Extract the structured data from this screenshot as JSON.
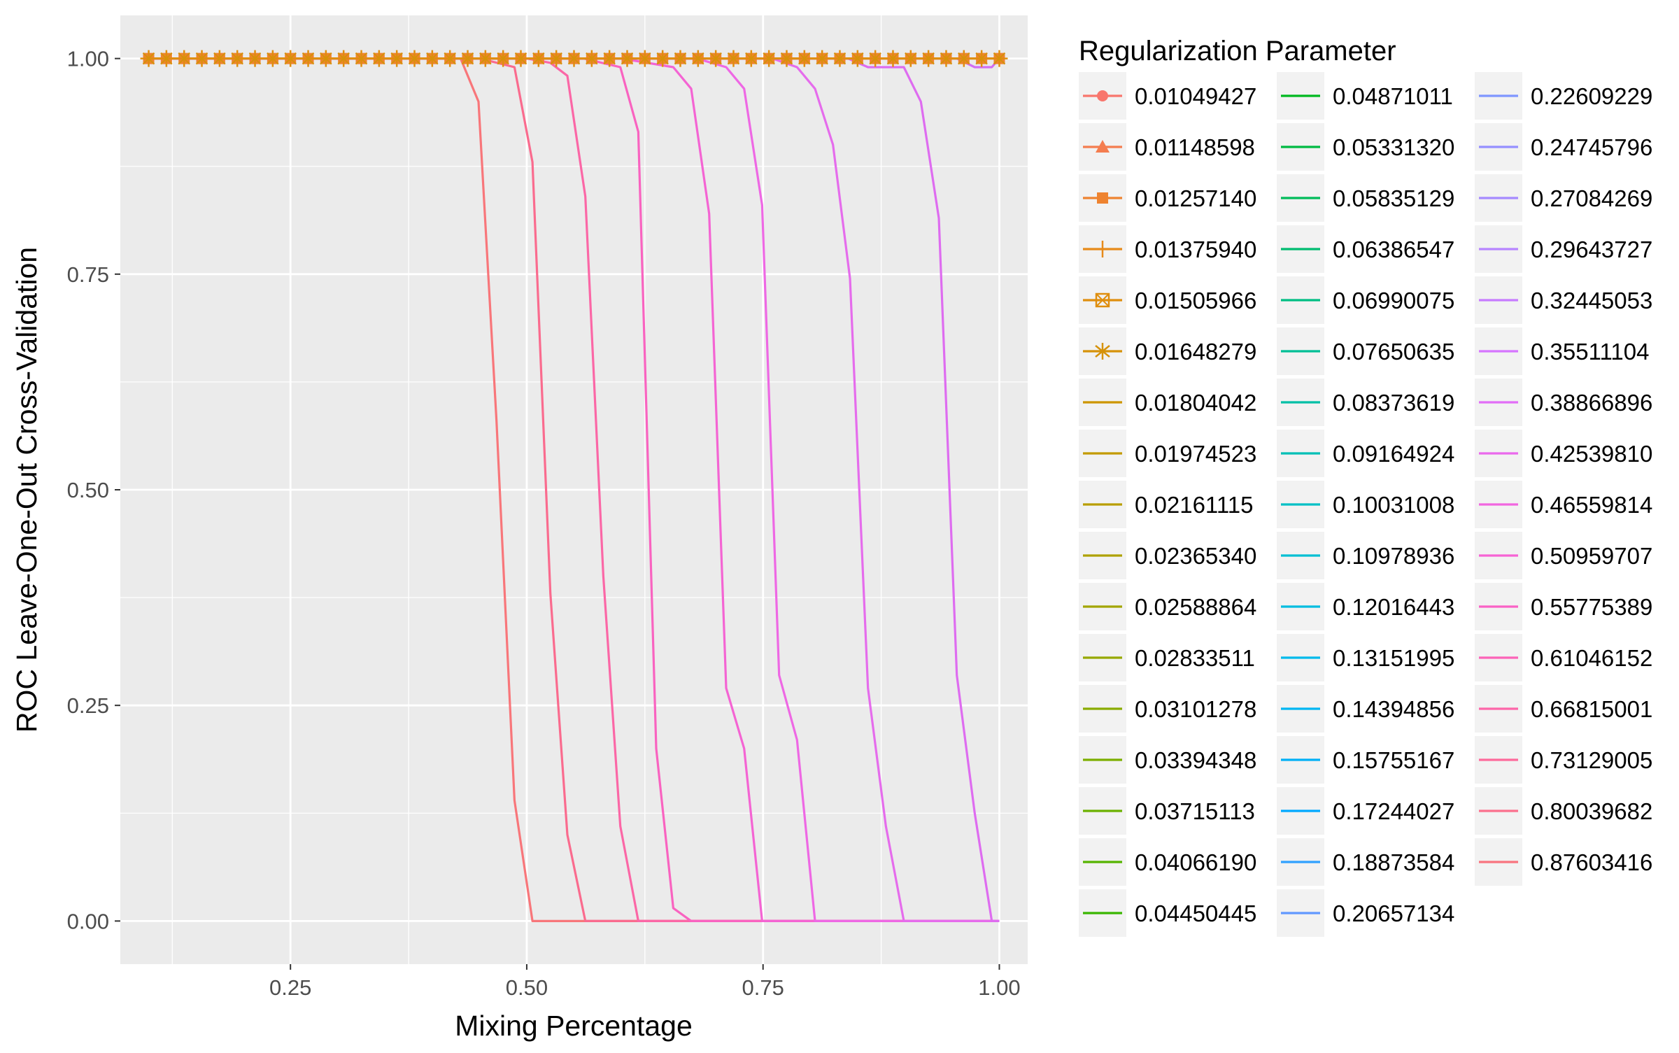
{
  "chart_data": {
    "type": "line",
    "title": "",
    "xlabel": "Mixing Percentage",
    "ylabel": "ROC Leave-One-Out Cross-Validation",
    "xlim": [
      0.07,
      1.03
    ],
    "ylim": [
      -0.05,
      1.05
    ],
    "x_ticks": [
      0.25,
      0.5,
      0.75,
      1.0
    ],
    "x_tick_labels": [
      "0.25",
      "0.50",
      "0.75",
      "1.00"
    ],
    "y_ticks": [
      0,
      0.25,
      0.5,
      0.75,
      1.0
    ],
    "y_tick_labels": [
      "0.00",
      "0.25",
      "0.50",
      "0.75",
      "1.00"
    ],
    "grid": true,
    "legend": {
      "title": "Regularization Parameter",
      "placement": "right",
      "columns": 3,
      "entries": [
        {
          "label": "0.01049427",
          "color": "#F8766D",
          "marker": "circle"
        },
        {
          "label": "0.01148598",
          "color": "#F47D4F",
          "marker": "triangle"
        },
        {
          "label": "0.01257140",
          "color": "#EE8330",
          "marker": "square"
        },
        {
          "label": "0.01375940",
          "color": "#E78A1A",
          "marker": "plus"
        },
        {
          "label": "0.01505966",
          "color": "#DF8E0E",
          "marker": "square-x"
        },
        {
          "label": "0.01648279",
          "color": "#D6920A",
          "marker": "asterisk"
        },
        {
          "label": "0.01804042",
          "color": "#CD9600",
          "marker": "none"
        },
        {
          "label": "0.01974523",
          "color": "#C39A00",
          "marker": "none"
        },
        {
          "label": "0.02161115",
          "color": "#B99E00",
          "marker": "none"
        },
        {
          "label": "0.02365340",
          "color": "#AEA200",
          "marker": "none"
        },
        {
          "label": "0.02588864",
          "color": "#A3A500",
          "marker": "none"
        },
        {
          "label": "0.02833511",
          "color": "#97A800",
          "marker": "none"
        },
        {
          "label": "0.03101278",
          "color": "#8AAB00",
          "marker": "none"
        },
        {
          "label": "0.03394348",
          "color": "#7CAE00",
          "marker": "none"
        },
        {
          "label": "0.03715113",
          "color": "#6BB100",
          "marker": "none"
        },
        {
          "label": "0.04066190",
          "color": "#55B400",
          "marker": "none"
        },
        {
          "label": "0.04450445",
          "color": "#39B600",
          "marker": "none"
        },
        {
          "label": "0.04871011",
          "color": "#00B81F",
          "marker": "none"
        },
        {
          "label": "0.05331320",
          "color": "#00BA42",
          "marker": "none"
        },
        {
          "label": "0.05835129",
          "color": "#00BB5A",
          "marker": "none"
        },
        {
          "label": "0.06386547",
          "color": "#00BC70",
          "marker": "none"
        },
        {
          "label": "0.06990075",
          "color": "#00BE83",
          "marker": "none"
        },
        {
          "label": "0.07650635",
          "color": "#00BF95",
          "marker": "none"
        },
        {
          "label": "0.08373619",
          "color": "#00C0A6",
          "marker": "none"
        },
        {
          "label": "0.09164924",
          "color": "#00C0B6",
          "marker": "none"
        },
        {
          "label": "0.10031008",
          "color": "#00C0C5",
          "marker": "none"
        },
        {
          "label": "0.10978936",
          "color": "#00BFD3",
          "marker": "none"
        },
        {
          "label": "0.12016443",
          "color": "#00BDE0",
          "marker": "none"
        },
        {
          "label": "0.13151995",
          "color": "#00BAEB",
          "marker": "none"
        },
        {
          "label": "0.14394856",
          "color": "#00B6F3",
          "marker": "none"
        },
        {
          "label": "0.15755167",
          "color": "#00B0F6",
          "marker": "none"
        },
        {
          "label": "0.17244027",
          "color": "#00A9FF",
          "marker": "none"
        },
        {
          "label": "0.18873584",
          "color": "#30A1FF",
          "marker": "none"
        },
        {
          "label": "0.20657134",
          "color": "#6198FF",
          "marker": "none"
        },
        {
          "label": "0.22609229",
          "color": "#7F96FF",
          "marker": "none"
        },
        {
          "label": "0.24745796",
          "color": "#9590FF",
          "marker": "none"
        },
        {
          "label": "0.27084269",
          "color": "#A58AFF",
          "marker": "none"
        },
        {
          "label": "0.29643727",
          "color": "#B785FF",
          "marker": "none"
        },
        {
          "label": "0.32445053",
          "color": "#C77CFF",
          "marker": "none"
        },
        {
          "label": "0.35511104",
          "color": "#D675FF",
          "marker": "none"
        },
        {
          "label": "0.38866896",
          "color": "#E16EF7",
          "marker": "none"
        },
        {
          "label": "0.42539810",
          "color": "#EA69EC",
          "marker": "none"
        },
        {
          "label": "0.46559814",
          "color": "#F166E0",
          "marker": "none"
        },
        {
          "label": "0.50959707",
          "color": "#F763D4",
          "marker": "none"
        },
        {
          "label": "0.55775389",
          "color": "#FA62C6",
          "marker": "none"
        },
        {
          "label": "0.61046152",
          "color": "#FC63B8",
          "marker": "none"
        },
        {
          "label": "0.66815001",
          "color": "#FD66A9",
          "marker": "none"
        },
        {
          "label": "0.73129005",
          "color": "#FD6A9B",
          "marker": "none"
        },
        {
          "label": "0.80039682",
          "color": "#FB6F8D",
          "marker": "none"
        },
        {
          "label": "0.87603416",
          "color": "#F8737E",
          "marker": "none"
        }
      ]
    },
    "series": [
      {
        "color": "#F8767A",
        "x": [
          0.1,
          0.43,
          0.449,
          0.468,
          0.487,
          0.506,
          0.56,
          0.62,
          0.69,
          0.75,
          0.82,
          0.89,
          0.96,
          1.0
        ],
        "y": [
          1.0,
          1.0,
          0.95,
          0.58,
          0.14,
          0.0,
          0.0,
          0.0,
          0.0,
          0.0,
          0.0,
          0.0,
          0.0,
          0.0
        ]
      },
      {
        "color": "#FA6B8E",
        "x": [
          0.1,
          0.45,
          0.487,
          0.506,
          0.525,
          0.543,
          0.562,
          0.62,
          0.69,
          0.75,
          0.82,
          0.89,
          0.96,
          1.0
        ],
        "y": [
          1.0,
          1.0,
          0.99,
          0.88,
          0.38,
          0.1,
          0.0,
          0.0,
          0.0,
          0.0,
          0.0,
          0.0,
          0.0,
          0.0
        ]
      },
      {
        "color": "#FB67A6",
        "x": [
          0.1,
          0.5,
          0.525,
          0.543,
          0.562,
          0.581,
          0.599,
          0.618,
          0.69,
          0.75,
          0.82,
          0.89,
          0.96,
          1.0
        ],
        "y": [
          1.0,
          1.0,
          0.995,
          0.98,
          0.84,
          0.4,
          0.11,
          0.0,
          0.0,
          0.0,
          0.0,
          0.0,
          0.0,
          0.0
        ]
      },
      {
        "color": "#F963C0",
        "x": [
          0.1,
          0.56,
          0.599,
          0.618,
          0.637,
          0.655,
          0.674,
          0.693,
          0.75,
          0.82,
          0.89,
          0.96,
          1.0
        ],
        "y": [
          1.0,
          1.0,
          0.99,
          0.915,
          0.2,
          0.015,
          0.0,
          0.0,
          0.0,
          0.0,
          0.0,
          0.0,
          0.0
        ]
      },
      {
        "color": "#F464D3",
        "x": [
          0.1,
          0.6,
          0.655,
          0.674,
          0.693,
          0.711,
          0.73,
          0.749,
          0.82,
          0.89,
          0.96,
          1.0
        ],
        "y": [
          1.0,
          1.0,
          0.99,
          0.965,
          0.82,
          0.27,
          0.2,
          0.0,
          0.0,
          0.0,
          0.0,
          0.0
        ]
      },
      {
        "color": "#EE68E4",
        "x": [
          0.1,
          0.68,
          0.711,
          0.73,
          0.749,
          0.767,
          0.786,
          0.805,
          0.824,
          0.89,
          0.96,
          1.0
        ],
        "y": [
          1.0,
          1.0,
          0.99,
          0.965,
          0.83,
          0.285,
          0.21,
          0.0,
          0.0,
          0.0,
          0.0,
          0.0
        ]
      },
      {
        "color": "#E56CEC",
        "x": [
          0.1,
          0.76,
          0.786,
          0.805,
          0.824,
          0.842,
          0.861,
          0.88,
          0.899,
          0.917,
          0.96,
          1.0
        ],
        "y": [
          1.0,
          1.0,
          0.99,
          0.965,
          0.9,
          0.745,
          0.27,
          0.11,
          0.0,
          0.0,
          0.0,
          0.0
        ]
      },
      {
        "color": "#DE6CF0",
        "x": [
          0.1,
          0.84,
          0.861,
          0.88,
          0.899,
          0.917,
          0.936,
          0.955,
          0.974,
          0.992,
          1.0
        ],
        "y": [
          1.0,
          1.0,
          0.99,
          0.99,
          0.99,
          0.95,
          0.815,
          0.285,
          0.125,
          0.0,
          0.0
        ]
      },
      {
        "color": "#D26EF3",
        "x": [
          0.1,
          0.955,
          0.974,
          0.992,
          1.0
        ],
        "y": [
          1.0,
          1.0,
          0.99,
          0.99,
          1.0
        ]
      },
      {
        "color": "#DF8E0E",
        "x": [
          0.1,
          0.43,
          0.7,
          1.0
        ],
        "y": [
          1.0,
          1.0,
          1.0,
          1.0
        ]
      }
    ],
    "marker_series": {
      "y": 1.0,
      "x": [
        0.1,
        0.11875,
        0.1375,
        0.15625,
        0.175,
        0.19375,
        0.2125,
        0.23125,
        0.25,
        0.26875,
        0.2875,
        0.30625,
        0.325,
        0.34375,
        0.3625,
        0.38125,
        0.4,
        0.41875,
        0.4375,
        0.45625,
        0.475,
        0.49375,
        0.5125,
        0.53125,
        0.55,
        0.56875,
        0.5875,
        0.60625,
        0.625,
        0.64375,
        0.6625,
        0.68125,
        0.7,
        0.71875,
        0.7375,
        0.75625,
        0.775,
        0.79375,
        0.8125,
        0.83125,
        0.85,
        0.86875,
        0.8875,
        0.90625,
        0.925,
        0.94375,
        0.9625,
        0.98125,
        1.0
      ]
    }
  }
}
